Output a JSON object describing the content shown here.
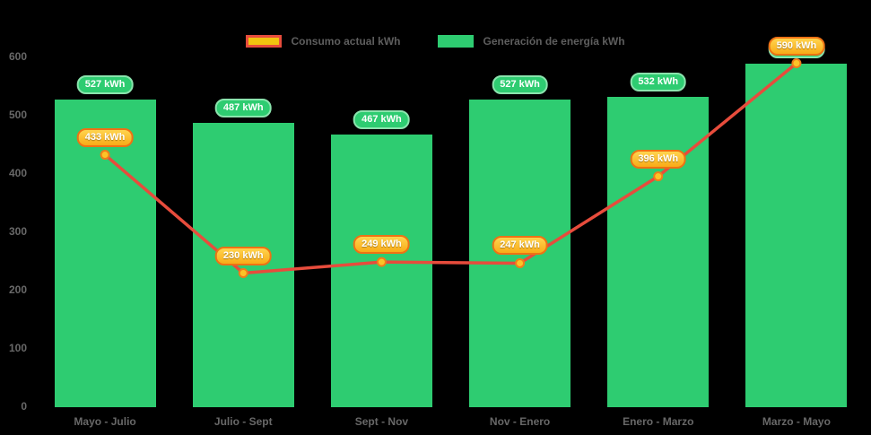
{
  "chart_data": {
    "type": "bar",
    "title": "",
    "categories": [
      "Mayo - Julio",
      "Julio - Sept",
      "Sept - Nov",
      "Nov - Enero",
      "Enero - Marzo",
      "Marzo - Mayo"
    ],
    "series": [
      {
        "name": "Consumo actual kWh",
        "type": "line",
        "values": [
          433,
          230,
          249,
          247,
          396,
          590
        ],
        "color": "#e74c3c",
        "point_fill": "#fcc327",
        "point_border": "#ef7d1a",
        "label_style": "orange-pill"
      },
      {
        "name": "Generación de energía kWh",
        "type": "bar",
        "values": [
          527,
          487,
          467,
          527,
          532,
          590
        ],
        "color": "#2ecc71",
        "label_style": "green-pill"
      }
    ],
    "value_suffix": " kWh",
    "data_labels": {
      "line": [
        "433 kWh",
        "230 kWh",
        "249 kWh",
        "247 kWh",
        "396 kWh",
        "590 kWh"
      ],
      "bar": [
        "527 kWh",
        "487 kWh",
        "467 kWh",
        "527 kWh",
        "532 kWh",
        "590 kWh"
      ]
    },
    "yticks": [
      0,
      100,
      200,
      300,
      400,
      500,
      600
    ],
    "ylim": [
      0,
      600
    ],
    "xlabel": "",
    "ylabel": "",
    "legend_position": "top",
    "grid": false,
    "background": "#000000",
    "axis_text_color": "#686868",
    "legend_swatches": [
      {
        "fill": "#f1c40f",
        "border": "#e74c3c"
      },
      {
        "fill": "#2ecc71",
        "border": "#2ecc71"
      }
    ]
  }
}
